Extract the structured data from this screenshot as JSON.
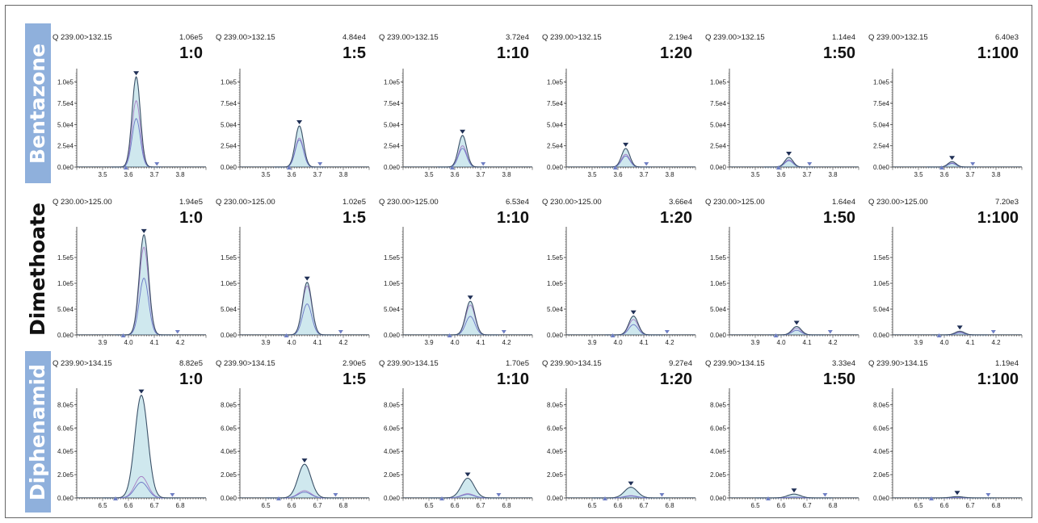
{
  "colors": {
    "fill": "#cfe8ee",
    "main_trace": "#3b5168",
    "qual_trace_1": "#a57bc4",
    "qual_trace_2": "#6a76c6",
    "marker": "#1f2f55",
    "end_marker": "#6f7fc4",
    "label_box": "#8fb0dc"
  },
  "chart_data": [
    {
      "type": "line",
      "compound": "Bentazone",
      "transition": "Q 239.00>132.15",
      "xlim": [
        3.4,
        3.9
      ],
      "xticks": [
        "3.5",
        "3.6",
        "3.7",
        "3.8"
      ],
      "ylim": [
        0,
        110000
      ],
      "yticks": [
        "0.0e0",
        "2.5e4",
        "5.0e4",
        "7.5e4",
        "1.0e5"
      ],
      "peak_rt": 3.63,
      "peak_width": 0.016,
      "integration": [
        3.59,
        3.71
      ],
      "panels": [
        {
          "ratio": "1:0",
          "intensity_label": "1.06e5",
          "height": 106000,
          "qual1": 78000,
          "qual2": 57000
        },
        {
          "ratio": "1:5",
          "intensity_label": "4.84e4",
          "height": 48400,
          "qual1": 34000,
          "qual2": 32000
        },
        {
          "ratio": "1:10",
          "intensity_label": "3.72e4",
          "height": 37200,
          "qual1": 25000,
          "qual2": 22000
        },
        {
          "ratio": "1:20",
          "intensity_label": "2.19e4",
          "height": 21900,
          "qual1": 15000,
          "qual2": 13000
        },
        {
          "ratio": "1:50",
          "intensity_label": "1.14e4",
          "height": 11400,
          "qual1": 8500,
          "qual2": 7500
        },
        {
          "ratio": "1:100",
          "intensity_label": "6.40e3",
          "height": 6400,
          "qual1": 4800,
          "qual2": 4200
        }
      ]
    },
    {
      "type": "line",
      "compound": "Dimethoate",
      "transition": "Q 230.00>125.00",
      "xlim": [
        3.8,
        4.3
      ],
      "xticks": [
        "3.9",
        "4.0",
        "4.1",
        "4.2"
      ],
      "ylim": [
        0,
        200000
      ],
      "yticks": [
        "0.0e0",
        "5.0e4",
        "1.0e5",
        "1.5e5"
      ],
      "peak_rt": 4.06,
      "peak_width": 0.018,
      "integration": [
        3.98,
        4.19
      ],
      "panels": [
        {
          "ratio": "1:0",
          "intensity_label": "1.94e5",
          "height": 194000,
          "qual1": 170000,
          "qual2": 110000
        },
        {
          "ratio": "1:5",
          "intensity_label": "1.02e5",
          "height": 102000,
          "qual1": 95000,
          "qual2": 60000
        },
        {
          "ratio": "1:10",
          "intensity_label": "6.53e4",
          "height": 65300,
          "qual1": 58000,
          "qual2": 36000
        },
        {
          "ratio": "1:20",
          "intensity_label": "3.66e4",
          "height": 36600,
          "qual1": 30000,
          "qual2": 20000
        },
        {
          "ratio": "1:50",
          "intensity_label": "1.64e4",
          "height": 16400,
          "qual1": 13000,
          "qual2": 9000
        },
        {
          "ratio": "1:100",
          "intensity_label": "7.20e3",
          "height": 7200,
          "qual1": 6000,
          "qual2": 4000
        }
      ]
    },
    {
      "type": "line",
      "compound": "Diphenamid",
      "transition": "Q 239.90>134.15",
      "xlim": [
        6.4,
        6.9
      ],
      "xticks": [
        "6.5",
        "6.6",
        "6.7",
        "6.8"
      ],
      "ylim": [
        0,
        900000
      ],
      "yticks": [
        "0.0e0",
        "2.0e5",
        "4.0e5",
        "6.0e5",
        "8.0e5"
      ],
      "peak_rt": 6.65,
      "peak_width": 0.025,
      "integration": [
        6.55,
        6.77
      ],
      "panels": [
        {
          "ratio": "1:0",
          "intensity_label": "8.82e5",
          "height": 882000,
          "qual1": 185000,
          "qual2": 135000
        },
        {
          "ratio": "1:5",
          "intensity_label": "2.90e5",
          "height": 290000,
          "qual1": 62000,
          "qual2": 50000
        },
        {
          "ratio": "1:10",
          "intensity_label": "1.70e5",
          "height": 170000,
          "qual1": 37000,
          "qual2": 30000
        },
        {
          "ratio": "1:20",
          "intensity_label": "9.27e4",
          "height": 92700,
          "qual1": 20000,
          "qual2": 16000
        },
        {
          "ratio": "1:50",
          "intensity_label": "3.33e4",
          "height": 33300,
          "qual1": 8000,
          "qual2": 6000
        },
        {
          "ratio": "1:100",
          "intensity_label": "1.19e4",
          "height": 11900,
          "qual1": 3000,
          "qual2": 2500
        }
      ]
    }
  ]
}
